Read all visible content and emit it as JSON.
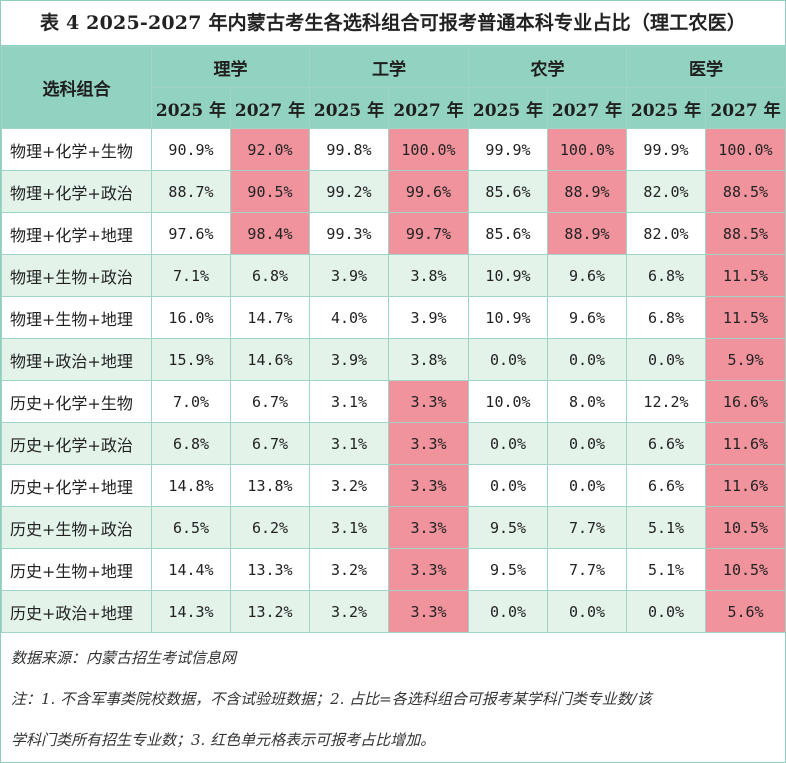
{
  "title": "表 4 2025-2027 年内蒙古考生各选科组合可报考普通本科专业占比（理工农医）",
  "header": {
    "combo_label": "选科组合",
    "disciplines": [
      "理学",
      "工学",
      "农学",
      "医学"
    ],
    "years": [
      "2025 年",
      "2027 年",
      "2025 年",
      "2027 年",
      "2025 年",
      "2027 年",
      "2025 年",
      "2027 年"
    ]
  },
  "colors": {
    "header_bg": "#92d2c0",
    "alt_row_bg": "#e3f3ea",
    "highlight_bg": "#f0939d",
    "border": "#9fd4c6"
  },
  "rows": [
    {
      "combo": "物理+化学+生物",
      "values": [
        "90.9%",
        "92.0%",
        "99.8%",
        "100.0%",
        "99.9%",
        "100.0%",
        "99.9%",
        "100.0%"
      ],
      "highlight": [
        1,
        3,
        5,
        7
      ]
    },
    {
      "combo": "物理+化学+政治",
      "values": [
        "88.7%",
        "90.5%",
        "99.2%",
        "99.6%",
        "85.6%",
        "88.9%",
        "82.0%",
        "88.5%"
      ],
      "highlight": [
        1,
        3,
        5,
        7
      ]
    },
    {
      "combo": "物理+化学+地理",
      "values": [
        "97.6%",
        "98.4%",
        "99.3%",
        "99.7%",
        "85.6%",
        "88.9%",
        "82.0%",
        "88.5%"
      ],
      "highlight": [
        1,
        3,
        5,
        7
      ]
    },
    {
      "combo": "物理+生物+政治",
      "values": [
        "7.1%",
        "6.8%",
        "3.9%",
        "3.8%",
        "10.9%",
        "9.6%",
        "6.8%",
        "11.5%"
      ],
      "highlight": [
        7
      ]
    },
    {
      "combo": "物理+生物+地理",
      "values": [
        "16.0%",
        "14.7%",
        "4.0%",
        "3.9%",
        "10.9%",
        "9.6%",
        "6.8%",
        "11.5%"
      ],
      "highlight": [
        7
      ]
    },
    {
      "combo": "物理+政治+地理",
      "values": [
        "15.9%",
        "14.6%",
        "3.9%",
        "3.8%",
        "0.0%",
        "0.0%",
        "0.0%",
        "5.9%"
      ],
      "highlight": [
        7
      ]
    },
    {
      "combo": "历史+化学+生物",
      "values": [
        "7.0%",
        "6.7%",
        "3.1%",
        "3.3%",
        "10.0%",
        "8.0%",
        "12.2%",
        "16.6%"
      ],
      "highlight": [
        3,
        7
      ]
    },
    {
      "combo": "历史+化学+政治",
      "values": [
        "6.8%",
        "6.7%",
        "3.1%",
        "3.3%",
        "0.0%",
        "0.0%",
        "6.6%",
        "11.6%"
      ],
      "highlight": [
        3,
        7
      ]
    },
    {
      "combo": "历史+化学+地理",
      "values": [
        "14.8%",
        "13.8%",
        "3.2%",
        "3.3%",
        "0.0%",
        "0.0%",
        "6.6%",
        "11.6%"
      ],
      "highlight": [
        3,
        7
      ]
    },
    {
      "combo": "历史+生物+政治",
      "values": [
        "6.5%",
        "6.2%",
        "3.1%",
        "3.3%",
        "9.5%",
        "7.7%",
        "5.1%",
        "10.5%"
      ],
      "highlight": [
        3,
        7
      ]
    },
    {
      "combo": "历史+生物+地理",
      "values": [
        "14.4%",
        "13.3%",
        "3.2%",
        "3.3%",
        "9.5%",
        "7.7%",
        "5.1%",
        "10.5%"
      ],
      "highlight": [
        3,
        7
      ]
    },
    {
      "combo": "历史+政治+地理",
      "values": [
        "14.3%",
        "13.2%",
        "3.2%",
        "3.3%",
        "0.0%",
        "0.0%",
        "0.0%",
        "5.6%"
      ],
      "highlight": [
        3,
        7
      ]
    }
  ],
  "notes": {
    "source": "数据来源：内蒙古招生考试信息网",
    "note_line1": "注：1. 不含军事类院校数据，不含试验班数据；2. 占比=各选科组合可报考某学科门类专业数/该",
    "note_line2": "学科门类所有招生专业数；3. 红色单元格表示可报考占比增加。"
  }
}
